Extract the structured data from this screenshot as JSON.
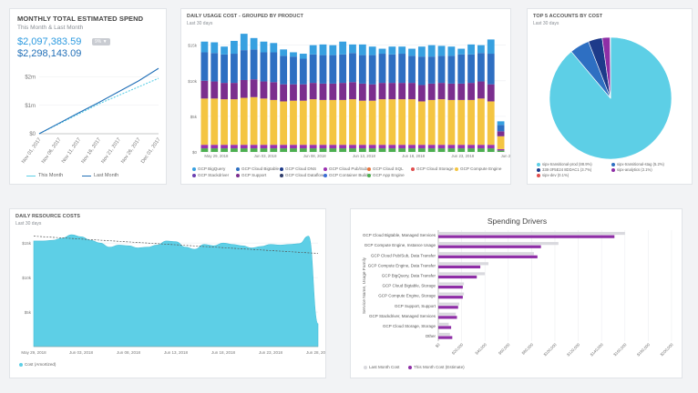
{
  "colors": {
    "accent": "#2c9ae0",
    "darkblue": "#2270b8",
    "cyan": "#5dcfe6",
    "purple": "#8e2ea6",
    "lightgray": "#d9d9de"
  },
  "spend": {
    "title": "MONTHLY TOTAL ESTIMATED SPEND",
    "subtitle": "This Month & Last Month",
    "this_month_value": "$2,097,383.59",
    "badge": "9%",
    "last_month_value": "$2,298,143.09",
    "legend": [
      "This Month",
      "Last Month"
    ]
  },
  "daily_usage": {
    "title": "DAILY USAGE COST - GROUPED BY PRODUCT",
    "subtitle": "Last 30 days",
    "legend": [
      {
        "name": "GCP BigQuery",
        "color": "#37a0e0"
      },
      {
        "name": "GCP Cloud Bigtable",
        "color": "#2e6fc2"
      },
      {
        "name": "GCP Cloud DNS",
        "color": "#1d3a8a"
      },
      {
        "name": "GCP Cloud Pub/Sub",
        "color": "#9b31b0"
      },
      {
        "name": "GCP Cloud SQL",
        "color": "#e8743b"
      },
      {
        "name": "GCP Cloud Storage",
        "color": "#e04e4e"
      },
      {
        "name": "GCP Compute Engine",
        "color": "#f4c542"
      },
      {
        "name": "GCP Stackdriver",
        "color": "#6a3fb0"
      },
      {
        "name": "GCP Support",
        "color": "#7b2e8e"
      },
      {
        "name": "GCP Cloud Dataflow",
        "color": "#2f3d6b"
      },
      {
        "name": "GCP Container Builder",
        "color": "#3a6cd4"
      },
      {
        "name": "GCP App Engine",
        "color": "#4caf50"
      }
    ]
  },
  "top_accounts": {
    "title": "TOP 5 ACCOUNTS BY COST",
    "subtitle": "Last 30 days",
    "legend": [
      {
        "name": "sipx-transitional-prod (88.9%)",
        "color": "#5dcfe6"
      },
      {
        "name": "sipx-transitional-stag (5.2%)",
        "color": "#2e6fc2"
      },
      {
        "name": "338-3F5E24 8DDAC1 (3.7%)",
        "color": "#1d3a8a"
      },
      {
        "name": "sipx-analytics (2.1%)",
        "color": "#8e2ea6"
      },
      {
        "name": "sipx-dev (0.1%)",
        "color": "#e04e4e"
      }
    ]
  },
  "daily_resource": {
    "title": "DAILY RESOURCE COSTS",
    "subtitle": "Last 30 days",
    "legend": "Cost (Amortized)"
  },
  "drivers": {
    "title": "Spending Drivers",
    "ylabel": "Service Name, Usage Family",
    "legend": [
      "Last Month Cost",
      "This Month Cost (Estimate)"
    ]
  },
  "chart_data": [
    {
      "type": "line",
      "title": "MONTHLY TOTAL ESTIMATED SPEND",
      "categories": [
        "Nov 01, 2017",
        "Nov 06, 2017",
        "Nov 11, 2017",
        "Nov 16, 2017",
        "Nov 21, 2017",
        "Nov 26, 2017",
        "Dec 01, 2017"
      ],
      "yticks": [
        "$0",
        "$1m",
        "$2m"
      ],
      "ylim": [
        0,
        2400000
      ],
      "series": [
        {
          "name": "This Month",
          "style": "dashed",
          "color": "#5dcfe6",
          "values": [
            0,
            350000,
            700000,
            1050000,
            1350000,
            1650000,
            1950000
          ]
        },
        {
          "name": "Last Month",
          "style": "solid",
          "color": "#2270b8",
          "values": [
            0,
            370000,
            740000,
            1100000,
            1480000,
            1860000,
            2300000
          ]
        }
      ]
    },
    {
      "type": "bar",
      "stacked": true,
      "title": "DAILY USAGE COST - GROUPED BY PRODUCT",
      "yticks": [
        "$0",
        "$5k",
        "$10k",
        "$15k"
      ],
      "ylim": [
        0,
        17000
      ],
      "xticks": [
        "May 29, 2018",
        "Jun 03, 2018",
        "Jun 08, 2018",
        "Jun 13, 2018",
        "Jun 18, 2018",
        "Jun 23, 2018",
        "Jun 28, 2018"
      ],
      "stack_order": [
        "GCP App Engine",
        "GCP Cloud Pub/Sub",
        "GCP Compute Engine",
        "GCP Support",
        "GCP Cloud Bigtable",
        "GCP BigQuery"
      ],
      "days": 31,
      "series": [
        {
          "name": "GCP App Engine",
          "values": [
            500,
            500,
            500,
            500,
            500,
            500,
            500,
            500,
            500,
            500,
            500,
            500,
            500,
            500,
            500,
            500,
            500,
            500,
            500,
            500,
            500,
            500,
            500,
            500,
            500,
            500,
            500,
            500,
            500,
            500,
            200
          ]
        },
        {
          "name": "GCP Cloud Pub/Sub",
          "values": [
            500,
            500,
            500,
            500,
            500,
            500,
            500,
            500,
            500,
            500,
            500,
            500,
            500,
            500,
            500,
            500,
            500,
            500,
            500,
            500,
            500,
            500,
            500,
            500,
            500,
            500,
            500,
            500,
            500,
            500,
            200
          ]
        },
        {
          "name": "GCP Compute Engine",
          "values": [
            6500,
            6500,
            6400,
            6400,
            6600,
            6700,
            6500,
            6300,
            6100,
            6200,
            6200,
            6400,
            6300,
            6300,
            6300,
            6400,
            6200,
            6200,
            6400,
            6400,
            6400,
            6400,
            6100,
            6300,
            6400,
            6300,
            6300,
            6300,
            6500,
            6100,
            1800
          ]
        },
        {
          "name": "GCP Support",
          "values": [
            2500,
            2400,
            2300,
            2300,
            2500,
            2500,
            2400,
            2500,
            2400,
            2300,
            2300,
            2300,
            2300,
            2300,
            2400,
            2400,
            2400,
            2300,
            2300,
            2300,
            2300,
            2300,
            2300,
            2300,
            2300,
            2300,
            2300,
            2400,
            2400,
            2400,
            700
          ]
        },
        {
          "name": "GCP Cloud Bigtable",
          "values": [
            4000,
            4000,
            4000,
            4100,
            4200,
            4200,
            4100,
            4200,
            4000,
            3900,
            3600,
            4000,
            4000,
            4000,
            4000,
            4100,
            4000,
            4100,
            4100,
            4000,
            4100,
            3800,
            4000,
            3800,
            3800,
            3900,
            4100,
            4000,
            4000,
            4300,
            900
          ]
        },
        {
          "name": "GCP BigQuery",
          "values": [
            1500,
            1500,
            1100,
            1800,
            2300,
            1600,
            1500,
            1300,
            900,
            600,
            700,
            1300,
            1500,
            1400,
            1800,
            1200,
            1500,
            1200,
            700,
            1100,
            1000,
            1000,
            1400,
            1600,
            1400,
            1300,
            800,
            1400,
            1100,
            2000,
            500
          ]
        }
      ]
    },
    {
      "type": "pie",
      "title": "TOP 5 ACCOUNTS BY COST",
      "labels": [
        "sipx-transitional-prod",
        "sipx-transitional-stag",
        "338-3F5E24 8DDAC1",
        "sipx-analytics",
        "sipx-dev"
      ],
      "values": [
        88.9,
        5.2,
        3.7,
        2.1,
        0.1
      ]
    },
    {
      "type": "area",
      "title": "DAILY RESOURCE COSTS",
      "yticks": [
        "$5k",
        "$10k",
        "$15k"
      ],
      "ylim": [
        0,
        17000
      ],
      "xticks": [
        "May 29, 2018",
        "Jun 03, 2018",
        "Jun 08, 2018",
        "Jun 13, 2018",
        "Jun 18, 2018",
        "Jun 23, 2018",
        "Jun 28, 2018"
      ],
      "series": [
        {
          "name": "Cost (Amortized)",
          "values": [
            15300,
            15300,
            15400,
            15700,
            16200,
            15900,
            15400,
            15000,
            14400,
            14700,
            14600,
            14300,
            14400,
            14700,
            15300,
            15200,
            14400,
            14100,
            14800,
            14600,
            15000,
            14800,
            14600,
            14300,
            14500,
            14800,
            14700,
            14800,
            14900,
            16000,
            3300
          ]
        },
        {
          "name": "Trend",
          "style": "dashed",
          "values": [
            16000,
            13500
          ]
        }
      ]
    },
    {
      "type": "bar",
      "orientation": "horizontal",
      "title": "Spending Drivers",
      "ylabel": "Service Name, Usage Family",
      "categories": [
        "GCP Cloud Bigtable, Managed Services",
        "GCP Compute Engine, Instance Usage",
        "GCP Cloud Pub/Sub, Data Transfer",
        "GCP Compute Engine, Data Transfer",
        "GCP BigQuery, Data Transfer",
        "GCP Cloud Bigtable, Storage",
        "GCP Compute Engine, Storage",
        "GCP Support, Support",
        "GCP Stackdriver, Managed Services",
        "GCP Cloud Storage, Storage",
        "Other"
      ],
      "xticks": [
        "$0",
        "$20,000",
        "$40,000",
        "$60,000",
        "$80,000",
        "$100,000",
        "$120,000",
        "$140,000",
        "$160,000",
        "$180,000",
        "$200,000"
      ],
      "xlim": [
        0,
        200000
      ],
      "series": [
        {
          "name": "Last Month Cost",
          "values": [
            160000,
            103000,
            82000,
            43000,
            40000,
            22000,
            22000,
            18000,
            15000,
            9000,
            10000
          ]
        },
        {
          "name": "This Month Cost (Estimate)",
          "values": [
            151000,
            88000,
            85000,
            36000,
            33000,
            21000,
            21000,
            17000,
            16000,
            11000,
            12000
          ]
        }
      ]
    }
  ]
}
